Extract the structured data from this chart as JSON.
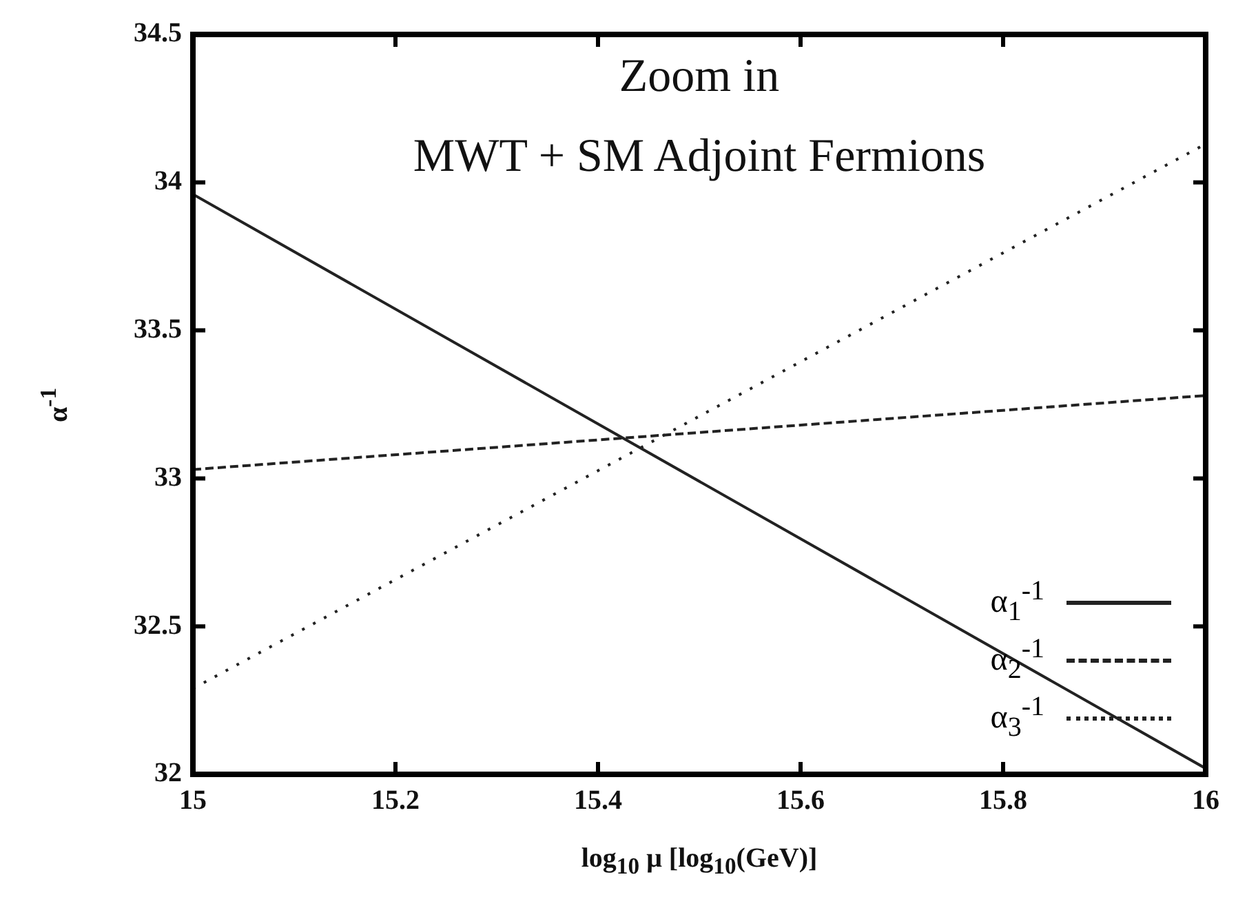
{
  "chart_data": {
    "type": "line",
    "title": "Zoom in",
    "subtitle": "MWT + SM Adjoint Fermions",
    "xlabel": "log$_{10}$ μ [log$_{10}$(GeV)]",
    "ylabel": "α$^{-1}$",
    "x": [
      15,
      16
    ],
    "series": [
      {
        "name": "α$_{1}$$^{-1}$",
        "color": "#222222",
        "line_style": "solid",
        "values": [
          33.96,
          32.02
        ]
      },
      {
        "name": "α$_{2}$$^{-1}$",
        "color": "#222222",
        "line_style": "dashed",
        "values": [
          33.03,
          33.28
        ]
      },
      {
        "name": "α$_{3}$$^{-1}$",
        "color": "#222222",
        "line_style": "dotted",
        "values": [
          32.29,
          34.13
        ]
      }
    ],
    "xlim": [
      15,
      16
    ],
    "xticks": [
      15,
      15.2,
      15.4,
      15.6,
      15.8,
      16
    ],
    "ylim": [
      32,
      34.5
    ],
    "yticks": [
      32,
      32.5,
      33,
      33.5,
      34,
      34.5
    ],
    "grid": false,
    "legend": "bottom right",
    "marker": "none"
  }
}
